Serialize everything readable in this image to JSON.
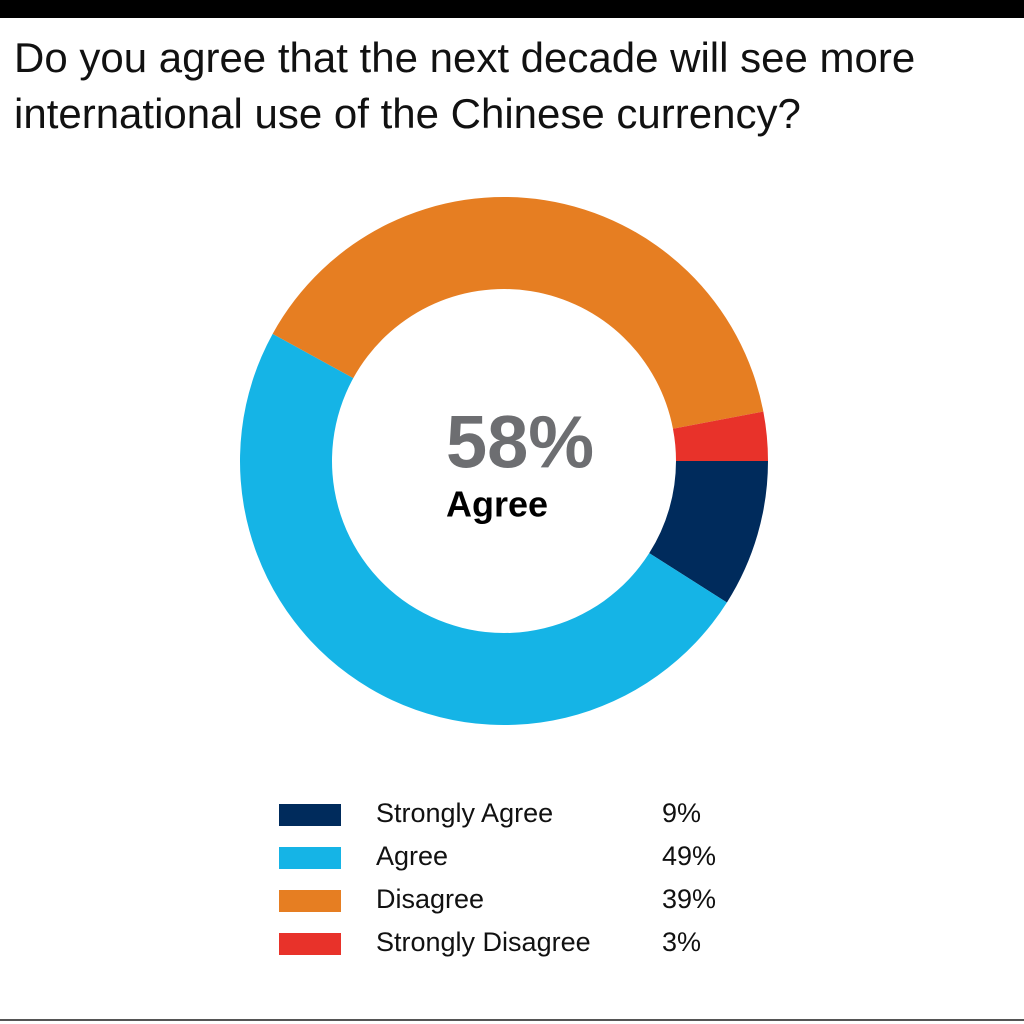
{
  "chart_data": {
    "type": "donut",
    "title": "Do you agree that the next decade will see more international use of the Chinese currency?",
    "center_value": 58,
    "center_value_label": "58%",
    "center_text": "Agree",
    "categories": [
      "Strongly Agree",
      "Agree",
      "Disagree",
      "Strongly Disagree"
    ],
    "values": [
      9,
      49,
      39,
      3
    ],
    "value_labels": [
      "9%",
      "49%",
      "39%",
      "3%"
    ],
    "colors": [
      "#002b5c",
      "#15b4e6",
      "#e67e22",
      "#e8322a"
    ]
  }
}
